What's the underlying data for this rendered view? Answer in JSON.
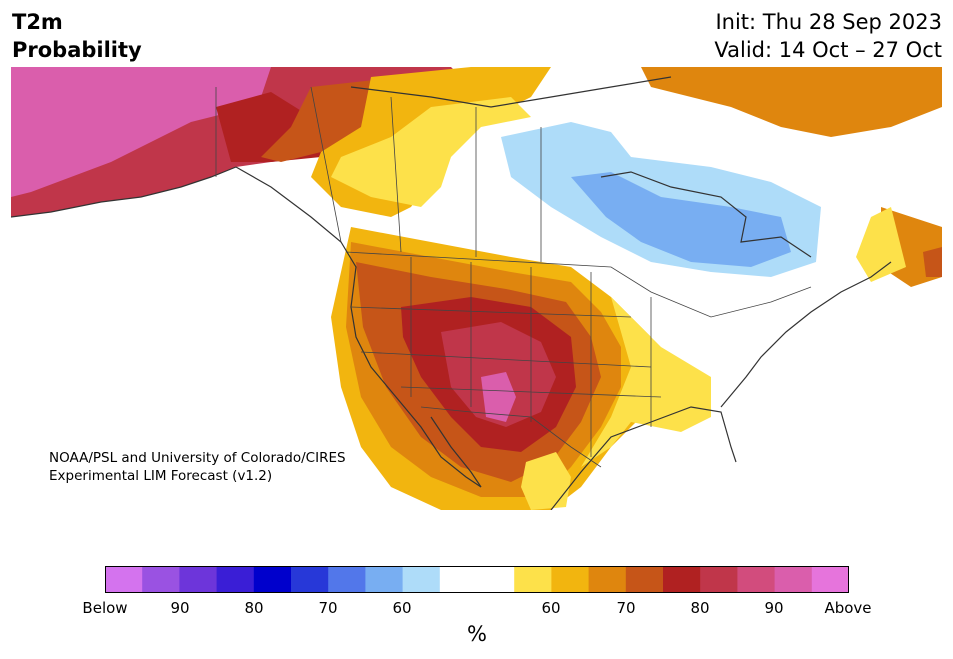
{
  "header": {
    "title_line1": "T2m",
    "title_line2": "Probability",
    "init": "Init: Thu 28 Sep 2023",
    "valid": "Valid: 14 Oct – 27 Oct"
  },
  "credit": {
    "line1": "NOAA/PSL and University of Colorado/CIRES",
    "line2": "Experimental LIM Forecast (v1.2)"
  },
  "colorbar": {
    "colors": [
      "#d473ee",
      "#9a52e2",
      "#6d35da",
      "#3a1ed6",
      "#0000cc",
      "#2738d8",
      "#5277ea",
      "#78aef2",
      "#aedcf9",
      "#ffffff",
      "#ffffff",
      "#fde14a",
      "#f2b50f",
      "#df860e",
      "#c65518",
      "#b02121",
      "#c0364a",
      "#d24c7d",
      "#da5eac",
      "#e674dc"
    ],
    "labels": [
      "Below",
      "90",
      "80",
      "70",
      "60",
      "60",
      "70",
      "80",
      "90",
      "Above"
    ],
    "unit": "%"
  },
  "map": {
    "ocean_color": "#ffffff",
    "land_neutral": "#ffffff",
    "anomaly_regions": [
      {
        "category": "Above 90+",
        "color": "#da5eac"
      },
      {
        "category": "Above 80-90",
        "color": "#c0364a"
      },
      {
        "category": "Above 70-80",
        "color": "#b02121"
      },
      {
        "category": "Above 60-70",
        "color": "#c65518"
      },
      {
        "category": "Above 50-60",
        "color": "#df860e"
      },
      {
        "category": "Above 40-50",
        "color": "#f2b50f"
      },
      {
        "category": "Above 33-40",
        "color": "#fde14a"
      },
      {
        "category": "Below 33-40",
        "color": "#aedcf9"
      },
      {
        "category": "Below 40-50",
        "color": "#78aef2"
      }
    ]
  }
}
